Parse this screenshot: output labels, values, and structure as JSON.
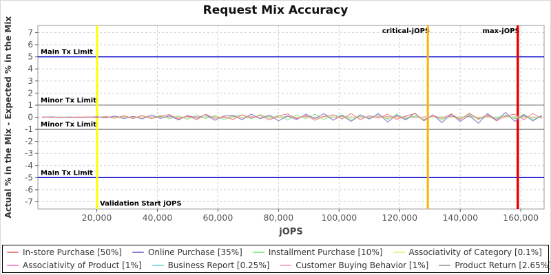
{
  "title": "Request Mix Accuracy",
  "chart_data": {
    "type": "line",
    "title": "Request Mix Accuracy",
    "xlabel": "jOPS",
    "ylabel": "Actual % in the Mix - Expected % in the Mix",
    "xlim": [
      550,
      167700
    ],
    "ylim": [
      -7.6,
      7.6
    ],
    "grid": "dashed",
    "legend_position": "bottom",
    "x_ticks": [
      20000,
      40000,
      60000,
      80000,
      100000,
      120000,
      140000,
      160000
    ],
    "x_tick_labels": [
      "20,000",
      "40,000",
      "60,000",
      "80,000",
      "100,000",
      "120,000",
      "140,000",
      "160,000"
    ],
    "y_ticks": [
      -7,
      -6,
      -5,
      -4,
      -3,
      -2,
      -1,
      0,
      1,
      2,
      3,
      4,
      5,
      6,
      7
    ],
    "reference_lines": {
      "horizontal": [
        {
          "label": "Main Tx Limit",
          "value": 5,
          "color": "#0000cc",
          "width": 1.3
        },
        {
          "label": "Minor Tx Limit",
          "value": 1,
          "color": "#666666",
          "width": 1
        },
        {
          "label": "Minor Tx Limit",
          "value": -1,
          "color": "#666666",
          "width": 1
        },
        {
          "label": "Main Tx Limit",
          "value": -5,
          "color": "#0000cc",
          "width": 1.3
        }
      ],
      "vertical": [
        {
          "label": "Validation Start jOPS",
          "value": 20100,
          "color": "#ffff00",
          "width": 3,
          "label_position": "bottom-right"
        },
        {
          "label": "critical-jOPS",
          "value": 129300,
          "color": "#ffb400",
          "width": 3,
          "label_position": "top-left"
        },
        {
          "label": "max-jOPS",
          "value": 159000,
          "color": "#e60000",
          "width": 3.5,
          "label_position": "top-left"
        }
      ]
    },
    "x": [
      2000,
      5000,
      8000,
      11000,
      14000,
      17000,
      20000,
      23000,
      26000,
      29000,
      32000,
      35000,
      38000,
      41000,
      44000,
      47000,
      50000,
      53000,
      56000,
      59000,
      62000,
      65000,
      68000,
      71000,
      74000,
      77000,
      80000,
      83000,
      86000,
      89000,
      92000,
      95000,
      98000,
      101000,
      104000,
      107000,
      110000,
      113000,
      116000,
      119000,
      122000,
      125000,
      128000,
      131000,
      134000,
      137000,
      140000,
      143000,
      146000,
      149000,
      152000,
      155000,
      158000,
      161000,
      164000,
      167000
    ],
    "series": [
      {
        "name": "In-store Purchase [50%]",
        "color": "#f08080",
        "values": [
          0.02,
          -0.01,
          0.01,
          -0.02,
          0.0,
          0.02,
          -0.03,
          0.05,
          -0.08,
          0.12,
          -0.1,
          0.15,
          -0.12,
          0.08,
          0.22,
          -0.15,
          0.1,
          -0.2,
          0.25,
          -0.1,
          0.05,
          -0.18,
          0.2,
          -0.05,
          0.15,
          -0.22,
          0.1,
          0.28,
          -0.12,
          0.18,
          -0.25,
          0.08,
          0.2,
          -0.15,
          0.3,
          -0.2,
          0.12,
          -0.08,
          0.25,
          -0.18,
          0.1,
          0.3,
          -0.25,
          0.15,
          -0.1,
          0.28,
          -0.2,
          0.35,
          -0.15,
          0.2,
          -0.3,
          0.1,
          0.25,
          -0.2,
          0.3,
          -0.1
        ]
      },
      {
        "name": "Online Purchase [35%]",
        "color": "#8080cd",
        "values": [
          -0.01,
          0.02,
          -0.02,
          0.01,
          -0.03,
          0.0,
          0.04,
          -0.06,
          0.1,
          -0.12,
          0.08,
          -0.15,
          0.18,
          -0.1,
          0.12,
          -0.22,
          0.15,
          -0.08,
          0.2,
          -0.25,
          0.1,
          0.15,
          -0.2,
          0.25,
          -0.12,
          0.18,
          -0.3,
          0.12,
          -0.2,
          0.25,
          -0.1,
          0.3,
          -0.25,
          0.15,
          -0.35,
          0.2,
          -0.15,
          0.3,
          -0.4,
          0.18,
          -0.22,
          0.35,
          -0.3,
          0.2,
          -0.45,
          0.25,
          -0.35,
          0.15,
          -0.5,
          0.3,
          -0.25,
          0.4,
          -0.35,
          0.2,
          -0.3,
          0.15
        ]
      },
      {
        "name": "Installment Purchase [10%]",
        "color": "#90e890",
        "values": [
          0.0,
          0.01,
          -0.01,
          0.02,
          -0.02,
          0.03,
          -0.04,
          0.06,
          -0.08,
          0.1,
          -0.12,
          0.14,
          -0.1,
          0.16,
          -0.14,
          0.12,
          -0.18,
          0.2,
          -0.12,
          0.15,
          -0.2,
          0.1,
          0.18,
          -0.15,
          0.22,
          -0.1,
          0.15,
          -0.22,
          0.18,
          -0.12,
          0.25,
          -0.18,
          0.12,
          0.2,
          -0.25,
          0.15,
          -0.1,
          0.22,
          -0.18,
          0.25,
          -0.15,
          0.1,
          -0.2,
          0.18,
          -0.25,
          0.2,
          -0.12,
          0.25,
          -0.2,
          0.15,
          -0.1,
          0.2,
          -0.15,
          0.25,
          -0.2,
          0.12
        ]
      },
      {
        "name": "Associativity of Category [0.1%]",
        "color": "#eeee88",
        "values": [
          0.0,
          0.0,
          0.01,
          -0.01,
          0.0,
          0.01,
          -0.01,
          0.0,
          0.01,
          -0.01,
          0.02,
          -0.02,
          0.01,
          0.0,
          -0.01,
          0.02,
          -0.01,
          0.01,
          -0.02,
          0.01,
          0.0,
          -0.01,
          0.01,
          0.0,
          -0.01,
          0.02,
          -0.01,
          0.0,
          0.01,
          -0.02,
          0.01,
          0.0,
          -0.01,
          0.01,
          -0.01,
          0.02,
          -0.01,
          0.0,
          0.01,
          -0.01,
          0.0,
          0.01,
          -0.02,
          0.01,
          0.0,
          -0.01,
          0.01,
          -0.01,
          0.02,
          -0.01,
          0.0,
          0.01,
          -0.01,
          0.01,
          0.0,
          -0.01
        ]
      },
      {
        "name": "Associativity of Product [1%]",
        "color": "#f48fc8",
        "values": [
          0.0,
          0.01,
          -0.01,
          0.0,
          0.02,
          -0.02,
          0.01,
          -0.01,
          0.03,
          -0.02,
          0.02,
          -0.03,
          0.04,
          -0.02,
          0.03,
          -0.04,
          0.02,
          0.05,
          -0.03,
          0.02,
          -0.05,
          0.03,
          -0.02,
          0.04,
          -0.03,
          0.05,
          -0.04,
          0.02,
          -0.03,
          0.05,
          -0.02,
          0.04,
          -0.05,
          0.03,
          -0.02,
          0.04,
          -0.03,
          0.02,
          0.05,
          -0.04,
          0.03,
          -0.05,
          0.02,
          0.04,
          -0.03,
          0.05,
          -0.02,
          0.03,
          -0.04,
          0.02,
          -0.05,
          0.04,
          -0.02,
          0.03,
          -0.04,
          0.02
        ]
      },
      {
        "name": "Business Report [0.25%]",
        "color": "#88dcdc",
        "values": [
          0.0,
          -0.01,
          0.01,
          0.0,
          -0.02,
          0.01,
          -0.01,
          0.02,
          -0.02,
          0.01,
          0.02,
          -0.03,
          0.02,
          -0.01,
          0.03,
          -0.02,
          0.01,
          -0.03,
          0.02,
          0.03,
          -0.02,
          0.01,
          -0.03,
          0.02,
          -0.01,
          0.03,
          -0.02,
          0.04,
          -0.03,
          0.02,
          -0.04,
          0.03,
          -0.02,
          0.01,
          0.03,
          -0.04,
          0.02,
          -0.03,
          0.04,
          -0.02,
          0.03,
          -0.04,
          0.02,
          -0.01,
          0.03,
          -0.02,
          0.04,
          -0.03,
          0.02,
          -0.04,
          0.03,
          -0.02,
          0.04,
          -0.03,
          0.02,
          -0.01
        ]
      },
      {
        "name": "Customer Buying Behavior [1%]",
        "color": "#f8b0bc",
        "values": [
          0.01,
          -0.01,
          0.0,
          0.02,
          -0.02,
          0.01,
          -0.03,
          0.02,
          -0.01,
          0.04,
          -0.03,
          0.02,
          -0.05,
          0.04,
          -0.02,
          0.06,
          -0.04,
          0.03,
          -0.06,
          0.05,
          -0.03,
          0.06,
          -0.05,
          0.04,
          -0.07,
          0.05,
          -0.04,
          0.07,
          -0.05,
          0.04,
          -0.08,
          0.06,
          -0.04,
          0.07,
          -0.06,
          0.05,
          -0.08,
          0.06,
          -0.05,
          0.08,
          -0.06,
          0.04,
          -0.07,
          0.06,
          -0.08,
          0.05,
          -0.06,
          0.08,
          -0.05,
          0.06,
          -0.07,
          0.05,
          -0.08,
          0.06,
          -0.05,
          0.04
        ]
      },
      {
        "name": "Product Return [2.65%]",
        "color": "#a8a8a8",
        "values": [
          0.0,
          0.01,
          -0.02,
          0.01,
          -0.01,
          0.03,
          -0.03,
          0.02,
          -0.04,
          0.05,
          -0.04,
          0.03,
          -0.06,
          0.05,
          -0.04,
          0.07,
          -0.05,
          0.04,
          -0.08,
          0.06,
          -0.05,
          0.08,
          -0.06,
          0.05,
          -0.09,
          0.07,
          -0.05,
          0.08,
          -0.07,
          0.06,
          -0.1,
          0.07,
          -0.06,
          0.09,
          -0.07,
          0.05,
          -0.08,
          0.07,
          -0.09,
          0.06,
          -0.08,
          0.1,
          -0.07,
          0.05,
          -0.09,
          0.08,
          -0.06,
          0.1,
          -0.08,
          0.06,
          -0.09,
          0.07,
          -0.06,
          0.08,
          -0.07,
          0.05
        ]
      }
    ],
    "colors": {
      "grid": "#cdcdcd",
      "plot_border": "#999999",
      "tick_label": "#555555",
      "axis_label": "#444444",
      "annotation_text": "#000000"
    }
  }
}
